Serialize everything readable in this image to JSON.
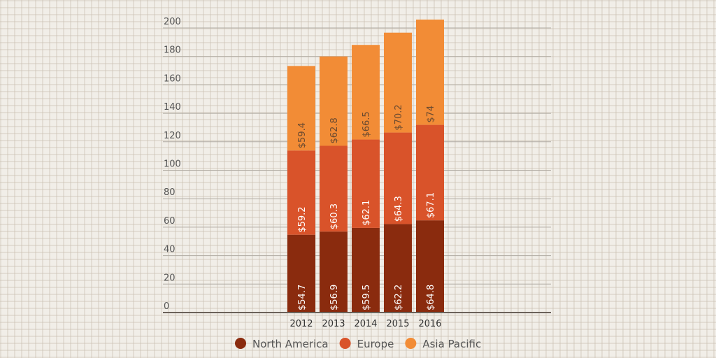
{
  "chart_data": {
    "type": "bar",
    "stacked": true,
    "categories": [
      "2012",
      "2013",
      "2014",
      "2015",
      "2016"
    ],
    "series": [
      {
        "name": "North America",
        "color": "#8a2b0e",
        "values": [
          54.7,
          56.9,
          59.5,
          62.2,
          64.8
        ],
        "labels": [
          "$54.7",
          "$56.9",
          "$59.5",
          "$62.2",
          "$64.8"
        ]
      },
      {
        "name": "Europe",
        "color": "#d9532a",
        "values": [
          59.2,
          60.3,
          62.1,
          64.3,
          67.1
        ],
        "labels": [
          "$59.2",
          "$60.3",
          "$62.1",
          "$64.3",
          "$67.1"
        ]
      },
      {
        "name": "Asia Pacific",
        "color": "#f28c36",
        "values": [
          59.4,
          62.8,
          66.5,
          70.2,
          74
        ],
        "labels": [
          "$59.4",
          "$62.8",
          "$66.5",
          "$70.2",
          "$74"
        ]
      }
    ],
    "yticks": [
      "0",
      "20",
      "40",
      "60",
      "80",
      "100",
      "120",
      "140",
      "160",
      "180",
      "200"
    ],
    "ylim": [
      0,
      200
    ],
    "grid": true,
    "legend": "bottom"
  }
}
